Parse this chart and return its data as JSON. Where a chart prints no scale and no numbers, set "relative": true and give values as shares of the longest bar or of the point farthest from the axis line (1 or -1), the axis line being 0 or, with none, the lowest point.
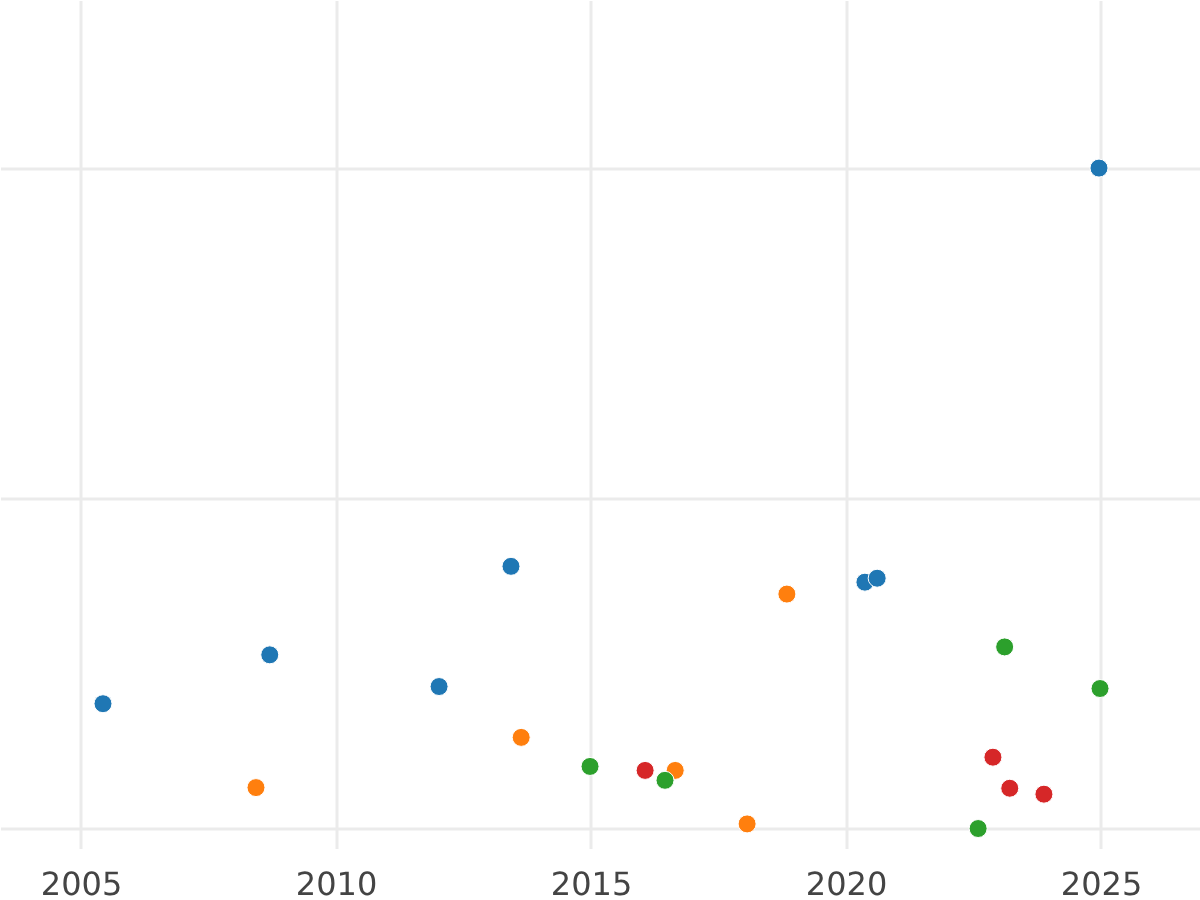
{
  "chart_data": {
    "type": "scatter",
    "relative": true,
    "marker": "circle",
    "grid": true,
    "xlim": [
      2003.42,
      2026.95
    ],
    "xticks": [
      2005,
      2010,
      2015,
      2020,
      2025
    ],
    "series": [
      {
        "color": "#1f77b4",
        "x": [
          2005.42,
          2008.69,
          2012.01,
          2013.42,
          2020.36,
          2020.6,
          2024.95
        ],
        "values": [
          0.189,
          0.263,
          0.215,
          0.397,
          0.373,
          0.379,
          1.0
        ]
      },
      {
        "color": "#ff7f0e",
        "x": [
          2008.42,
          2013.62,
          2016.64,
          2018.83,
          2018.05
        ],
        "values": [
          0.062,
          0.138,
          0.088,
          0.355,
          0.007
        ]
      },
      {
        "color": "#2ca02c",
        "x": [
          2014.97,
          2016.44,
          2023.1,
          2024.97,
          2022.58
        ],
        "values": [
          0.094,
          0.073,
          0.275,
          0.212,
          0.0
        ]
      },
      {
        "color": "#d62728",
        "x": [
          2016.05,
          2022.87,
          2023.2,
          2023.87
        ],
        "values": [
          0.088,
          0.108,
          0.061,
          0.052
        ]
      }
    ]
  }
}
